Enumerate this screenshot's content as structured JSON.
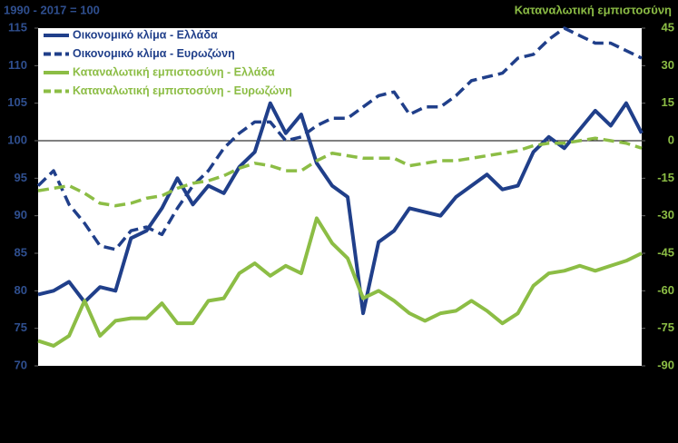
{
  "chart_data": {
    "type": "line",
    "y_axis_title": "1990 - 2017 = 100",
    "y2_axis_title": "Καταναλωτική εμπιστοσύνη",
    "categories": [
      null,
      null,
      null,
      null,
      null,
      null,
      null,
      null,
      null,
      null,
      null,
      null,
      null,
      null,
      null,
      null,
      null,
      null,
      null,
      null,
      null,
      null,
      null,
      null,
      null,
      null,
      null,
      null,
      null,
      null,
      null,
      null,
      null,
      null,
      null,
      null,
      null,
      null,
      null,
      null
    ],
    "series": [
      {
        "name": "Οικονομικό κλίμα - Ελλάδα",
        "color": "#203f8a",
        "dash": false,
        "axis": "y",
        "values": [
          79.5,
          80,
          81.2,
          78.5,
          80.5,
          80,
          87,
          88,
          91,
          95,
          91.5,
          94,
          93,
          96.5,
          98.5,
          105,
          101,
          103.5,
          97,
          94,
          92.5,
          77,
          86.5,
          88,
          91,
          90.5,
          90,
          92.5,
          94,
          95.5,
          93.5,
          94,
          98.5,
          100.5,
          99,
          101.5,
          104,
          102,
          105,
          101
        ]
      },
      {
        "name": "Οικονομικό κλίμα - Ευρωζώνη",
        "color": "#203f8a",
        "dash": true,
        "axis": "y",
        "values": [
          94,
          96,
          91.5,
          89,
          86,
          85.5,
          88,
          88.5,
          87.5,
          91,
          94,
          96,
          99,
          101,
          102.5,
          102.5,
          100,
          100.5,
          102,
          103,
          103,
          104.5,
          106,
          106.5,
          103.5,
          104.5,
          104.5,
          106,
          108,
          108.5,
          109,
          111,
          111.5,
          113.5,
          115,
          114,
          113,
          113,
          112,
          111
        ]
      },
      {
        "name": "Καταναλωτική εμπιστοσύνη - Ελλάδα",
        "color": "#8cbd45",
        "dash": false,
        "axis": "y2",
        "values": [
          -80,
          -82,
          -78,
          -64,
          -78,
          -72,
          -71,
          -71,
          -65,
          -73,
          -73,
          -64,
          -63,
          -53,
          -49,
          -54,
          -50,
          -53,
          -31,
          -41,
          -47,
          -63,
          -60,
          -64,
          -69,
          -72,
          -69,
          -68,
          -64,
          -68,
          -73,
          -69,
          -58,
          -53,
          -52,
          -50,
          -52,
          -50,
          -48,
          -45
        ]
      },
      {
        "name": "Καταναλωτική εμπιστοσύνη - Ευρωζώνη",
        "color": "#8cbd45",
        "dash": true,
        "axis": "y2",
        "values": [
          -20,
          -19,
          -18,
          -21,
          -25,
          -26,
          -25,
          -23,
          -22,
          -19,
          -17,
          -16,
          -14,
          -11,
          -9,
          -10,
          -12,
          -12,
          -8,
          -5,
          -6,
          -7,
          -7,
          -7,
          -10,
          -9,
          -8,
          -8,
          -7,
          -6,
          -5,
          -4,
          -2,
          -1,
          -1,
          0,
          1,
          0,
          -1,
          -3
        ]
      }
    ],
    "ylim": [
      70,
      115
    ],
    "yticks": [
      70,
      75,
      80,
      85,
      90,
      95,
      100,
      105,
      110,
      115
    ],
    "y2lim": [
      -90,
      45
    ],
    "y2ticks": [
      -90,
      -75,
      -60,
      -45,
      -30,
      -15,
      0,
      15,
      30,
      45
    ],
    "reference_line": 100,
    "y_tick_color": "#2f4f8f",
    "y2_tick_color": "#8cbd45",
    "legend": "upper left"
  }
}
